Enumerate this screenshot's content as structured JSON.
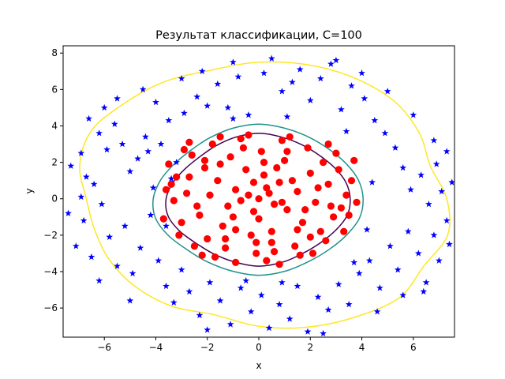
{
  "chart_data": {
    "type": "scatter",
    "title": "Результат классификации, C=100",
    "xlabel": "x",
    "ylabel": "y",
    "xlim": [
      -7.6,
      7.6
    ],
    "ylim": [
      -7.6,
      8.4
    ],
    "xticks": [
      -6,
      -4,
      -2,
      0,
      2,
      4,
      6
    ],
    "yticks": [
      -6,
      -4,
      -2,
      0,
      2,
      4,
      6,
      8
    ],
    "grid": false,
    "series": [
      {
        "marker": "star",
        "color": "#0000ff",
        "points": [
          [
            -7.3,
            1.8
          ],
          [
            -6.9,
            2.5
          ],
          [
            -6.7,
            1.2
          ],
          [
            -6.4,
            0.8
          ],
          [
            -6.2,
            3.6
          ],
          [
            -5.9,
            2.7
          ],
          [
            -5.6,
            4.1
          ],
          [
            -5.3,
            3.0
          ],
          [
            -5.0,
            1.5
          ],
          [
            -4.7,
            2.2
          ],
          [
            -4.4,
            3.4
          ],
          [
            -4.1,
            0.6
          ],
          [
            -3.8,
            3.0
          ],
          [
            -3.5,
            4.3
          ],
          [
            -3.2,
            2.0
          ],
          [
            -2.9,
            4.7
          ],
          [
            -2.4,
            5.6
          ],
          [
            -2.0,
            5.1
          ],
          [
            -1.6,
            6.3
          ],
          [
            -1.2,
            5.0
          ],
          [
            -0.8,
            6.7
          ],
          [
            -0.4,
            4.6
          ],
          [
            0.2,
            6.9
          ],
          [
            0.5,
            7.7
          ],
          [
            0.9,
            5.9
          ],
          [
            1.3,
            6.4
          ],
          [
            1.6,
            7.1
          ],
          [
            2.0,
            5.4
          ],
          [
            2.4,
            6.6
          ],
          [
            2.8,
            7.4
          ],
          [
            3.2,
            4.9
          ],
          [
            3.6,
            6.2
          ],
          [
            4.1,
            5.5
          ],
          [
            4.5,
            4.3
          ],
          [
            4.9,
            3.6
          ],
          [
            5.3,
            2.8
          ],
          [
            5.6,
            1.7
          ],
          [
            5.9,
            0.5
          ],
          [
            6.3,
            1.3
          ],
          [
            6.6,
            -0.3
          ],
          [
            6.9,
            1.9
          ],
          [
            7.1,
            0.4
          ],
          [
            7.3,
            -1.2
          ],
          [
            -7.1,
            -2.6
          ],
          [
            -6.8,
            -1.2
          ],
          [
            -6.5,
            -3.2
          ],
          [
            -6.1,
            -0.3
          ],
          [
            -5.8,
            -2.1
          ],
          [
            -5.5,
            -3.7
          ],
          [
            -5.2,
            -1.5
          ],
          [
            -4.9,
            -4.1
          ],
          [
            -4.6,
            -2.7
          ],
          [
            -4.2,
            -0.9
          ],
          [
            -3.9,
            -3.4
          ],
          [
            -3.6,
            -4.8
          ],
          [
            -3.3,
            -5.7
          ],
          [
            -3.0,
            -3.9
          ],
          [
            -2.7,
            -5.1
          ],
          [
            -2.3,
            -6.4
          ],
          [
            -1.9,
            -4.6
          ],
          [
            -1.5,
            -5.6
          ],
          [
            -1.1,
            -6.9
          ],
          [
            -0.7,
            -4.9
          ],
          [
            -0.3,
            -6.2
          ],
          [
            0.1,
            -5.3
          ],
          [
            0.4,
            -7.1
          ],
          [
            0.8,
            -5.8
          ],
          [
            1.2,
            -6.6
          ],
          [
            1.5,
            -4.8
          ],
          [
            1.9,
            -7.3
          ],
          [
            2.3,
            -5.4
          ],
          [
            2.7,
            -6.1
          ],
          [
            3.1,
            -4.7
          ],
          [
            3.5,
            -5.8
          ],
          [
            3.9,
            -4.1
          ],
          [
            4.3,
            -3.4
          ],
          [
            4.7,
            -4.9
          ],
          [
            5.1,
            -2.6
          ],
          [
            5.4,
            -3.9
          ],
          [
            5.8,
            -1.8
          ],
          [
            6.2,
            -3.0
          ],
          [
            6.5,
            -4.6
          ],
          [
            6.8,
            -2.0
          ],
          [
            7.0,
            -3.4
          ],
          [
            7.4,
            -2.5
          ],
          [
            -6.0,
            5.0
          ],
          [
            -4.5,
            6.0
          ],
          [
            -3.0,
            6.6
          ],
          [
            -5.5,
            5.5
          ],
          [
            -2.2,
            7.0
          ],
          [
            -1.0,
            7.5
          ],
          [
            4.0,
            6.9
          ],
          [
            5.0,
            5.9
          ],
          [
            6.0,
            4.6
          ],
          [
            6.8,
            3.2
          ],
          [
            7.3,
            2.6
          ],
          [
            -7.4,
            -0.8
          ],
          [
            -6.6,
            4.4
          ],
          [
            -4.0,
            5.3
          ],
          [
            3.0,
            7.6
          ],
          [
            6.4,
            -5.1
          ],
          [
            -6.2,
            -4.5
          ],
          [
            -5.0,
            -5.6
          ],
          [
            -2.0,
            -7.2
          ],
          [
            2.5,
            -7.4
          ],
          [
            4.6,
            -6.2
          ],
          [
            5.6,
            -5.3
          ],
          [
            -3.4,
            1.1
          ],
          [
            -3.6,
            -1.5
          ],
          [
            3.4,
            3.7
          ],
          [
            3.7,
            -3.5
          ],
          [
            -4.3,
            2.6
          ],
          [
            4.4,
            0.9
          ],
          [
            4.2,
            -1.7
          ],
          [
            -1.0,
            4.4
          ],
          [
            1.1,
            4.5
          ],
          [
            -0.5,
            -4.5
          ],
          [
            0.9,
            -4.6
          ],
          [
            -6.9,
            0.1
          ],
          [
            7.5,
            0.9
          ]
        ]
      },
      {
        "marker": "circle",
        "color": "#ff0000",
        "points": [
          [
            0.0,
            0.0
          ],
          [
            0.3,
            0.6
          ],
          [
            -0.4,
            0.2
          ],
          [
            0.6,
            -0.3
          ],
          [
            -0.2,
            -0.7
          ],
          [
            0.8,
            0.9
          ],
          [
            -0.9,
            0.5
          ],
          [
            1.1,
            -0.6
          ],
          [
            -1.2,
            -0.4
          ],
          [
            0.2,
            1.3
          ],
          [
            -0.5,
            1.6
          ],
          [
            1.5,
            0.4
          ],
          [
            -1.6,
            1.0
          ],
          [
            1.7,
            -1.3
          ],
          [
            -1.4,
            -1.5
          ],
          [
            0.5,
            -1.8
          ],
          [
            -0.3,
            -2.0
          ],
          [
            2.0,
            1.4
          ],
          [
            -2.1,
            1.7
          ],
          [
            2.2,
            -0.2
          ],
          [
            -2.3,
            -0.9
          ],
          [
            1.0,
            2.1
          ],
          [
            -1.1,
            2.3
          ],
          [
            2.4,
            -1.8
          ],
          [
            -2.0,
            -2.2
          ],
          [
            0.1,
            2.6
          ],
          [
            -0.6,
            2.8
          ],
          [
            2.7,
            0.8
          ],
          [
            -2.8,
            0.3
          ],
          [
            2.5,
            2.0
          ],
          [
            -2.6,
            2.4
          ],
          [
            2.9,
            -1.0
          ],
          [
            -3.0,
            -1.3
          ],
          [
            1.4,
            -2.6
          ],
          [
            -1.3,
            -2.7
          ],
          [
            0.6,
            -2.9
          ],
          [
            -0.1,
            -3.0
          ],
          [
            3.1,
            1.6
          ],
          [
            -3.2,
            1.2
          ],
          [
            3.2,
            -0.5
          ],
          [
            -3.3,
            -0.1
          ],
          [
            1.9,
            2.8
          ],
          [
            -1.8,
            3.0
          ],
          [
            2.6,
            -2.3
          ],
          [
            -2.5,
            -2.6
          ],
          [
            0.9,
            3.2
          ],
          [
            -0.7,
            3.3
          ],
          [
            3.4,
            0.2
          ],
          [
            -3.4,
            0.8
          ],
          [
            1.6,
            -3.1
          ],
          [
            -1.7,
            -3.2
          ],
          [
            0.3,
            -3.4
          ],
          [
            -0.4,
            3.5
          ],
          [
            3.0,
            2.5
          ],
          [
            -2.9,
            2.7
          ],
          [
            3.3,
            -1.8
          ],
          [
            -3.1,
            -2.0
          ],
          [
            2.1,
            -3.0
          ],
          [
            -2.2,
            -3.1
          ],
          [
            1.2,
            3.4
          ],
          [
            -1.5,
            3.4
          ],
          [
            3.6,
            1.0
          ],
          [
            -3.6,
            0.5
          ],
          [
            3.5,
            -0.9
          ],
          [
            0.4,
            0.3
          ],
          [
            -0.7,
            -0.1
          ],
          [
            0.9,
            -0.2
          ],
          [
            -0.2,
            0.9
          ],
          [
            1.3,
            1.0
          ],
          [
            -1.0,
            -1.0
          ],
          [
            0.0,
            -1.1
          ],
          [
            1.8,
            -0.6
          ],
          [
            -1.9,
            0.2
          ],
          [
            0.7,
            1.7
          ],
          [
            -0.9,
            -1.7
          ],
          [
            1.5,
            -1.7
          ],
          [
            -1.5,
            1.9
          ],
          [
            2.3,
            0.6
          ],
          [
            -2.4,
            -0.4
          ],
          [
            0.2,
            2.0
          ],
          [
            -0.1,
            -2.4
          ],
          [
            2.8,
            -0.4
          ],
          [
            -2.7,
            1.2
          ],
          [
            1.1,
            2.6
          ],
          [
            -1.3,
            -2.2
          ],
          [
            2.0,
            -2.1
          ],
          [
            -2.1,
            2.1
          ],
          [
            0.5,
            -2.4
          ],
          [
            3.8,
            -0.2
          ],
          [
            3.7,
            2.1
          ],
          [
            -3.7,
            -1.1
          ],
          [
            -3.5,
            1.9
          ],
          [
            2.7,
            3.0
          ],
          [
            -2.7,
            3.1
          ],
          [
            0.8,
            -3.6
          ],
          [
            -0.9,
            -3.5
          ]
        ]
      }
    ],
    "contours": [
      {
        "color": "#440154",
        "radii": [
          3.55,
          3.5,
          3.4,
          3.35,
          3.4,
          3.5,
          3.6,
          3.5,
          3.35,
          3.25,
          3.3,
          3.45,
          3.6,
          3.65,
          3.55,
          3.45,
          3.5,
          3.6,
          3.7,
          3.6,
          3.45,
          3.4,
          3.45,
          3.55
        ]
      },
      {
        "color": "#21918c",
        "radii": [
          4.05,
          4.0,
          3.9,
          3.85,
          3.9,
          4.0,
          4.1,
          4.0,
          3.85,
          3.75,
          3.8,
          3.95,
          4.1,
          4.15,
          4.05,
          3.95,
          4.0,
          4.1,
          4.2,
          4.1,
          3.95,
          3.9,
          3.95,
          4.05
        ]
      },
      {
        "color": "#fde725",
        "radii": [
          7.3,
          6.9,
          7.2,
          7.5,
          7.6,
          7.6,
          7.5,
          7.3,
          7.4,
          7.4,
          7.5,
          7.2,
          6.7,
          6.6,
          6.7,
          6.8,
          6.8,
          6.6,
          7.0,
          7.3,
          7.5,
          7.7,
          7.4,
          7.6
        ]
      }
    ]
  }
}
